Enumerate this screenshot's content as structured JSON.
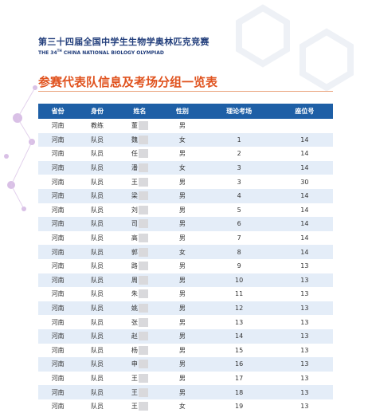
{
  "header": {
    "title": "第三十四届全国中学生生物学奥林匹克竞赛",
    "subtitle_parts": [
      "THE 34",
      "TH",
      " CHINA NATIONAL BIOLOGY OLYMPIAD"
    ]
  },
  "heading": "参赛代表队信息及考场分组一览表",
  "table": {
    "columns": [
      "省份",
      "身份",
      "姓名",
      "性别",
      "理论考场",
      "座位号"
    ],
    "rows": [
      [
        "河南",
        "教练",
        "董",
        "男",
        null,
        null
      ],
      [
        "河南",
        "队员",
        "魏",
        "女",
        1,
        14
      ],
      [
        "河南",
        "队员",
        "任",
        "男",
        2,
        14
      ],
      [
        "河南",
        "队员",
        "潘",
        "女",
        3,
        14
      ],
      [
        "河南",
        "队员",
        "王",
        "男",
        3,
        30
      ],
      [
        "河南",
        "队员",
        "梁",
        "男",
        4,
        14
      ],
      [
        "河南",
        "队员",
        "刘",
        "男",
        5,
        14
      ],
      [
        "河南",
        "队员",
        "司",
        "男",
        6,
        14
      ],
      [
        "河南",
        "队员",
        "高",
        "男",
        7,
        14
      ],
      [
        "河南",
        "队员",
        "郭",
        "女",
        8,
        14
      ],
      [
        "河南",
        "队员",
        "路",
        "男",
        9,
        13
      ],
      [
        "河南",
        "队员",
        "周",
        "男",
        10,
        13
      ],
      [
        "河南",
        "队员",
        "朱",
        "男",
        11,
        13
      ],
      [
        "河南",
        "队员",
        "姚",
        "男",
        12,
        13
      ],
      [
        "河南",
        "队员",
        "张",
        "男",
        13,
        13
      ],
      [
        "河南",
        "队员",
        "赵",
        "男",
        14,
        13
      ],
      [
        "河南",
        "队员",
        "杨",
        "男",
        15,
        13
      ],
      [
        "河南",
        "队员",
        "申",
        "男",
        16,
        13
      ],
      [
        "河南",
        "队员",
        "王",
        "男",
        17,
        13
      ],
      [
        "河南",
        "队员",
        "王",
        "男",
        18,
        13
      ],
      [
        "河南",
        "队员",
        "王",
        "女",
        19,
        13
      ]
    ]
  }
}
